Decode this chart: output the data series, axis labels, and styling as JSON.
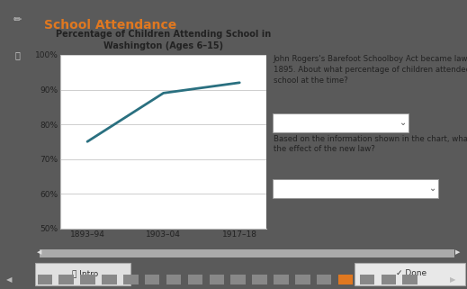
{
  "title": "School Attendance",
  "title_color": "#e07820",
  "chart_title": "Percentage of Children Attending School in\nWashington (Ages 6–15)",
  "x_labels": [
    "1893–94",
    "1903–04",
    "1917–18"
  ],
  "x_values": [
    0,
    1,
    2
  ],
  "y_values": [
    75,
    89,
    92
  ],
  "y_min": 50,
  "y_max": 100,
  "y_ticks": [
    50,
    60,
    70,
    80,
    90,
    100
  ],
  "y_tick_labels": [
    "50%",
    "60%",
    "70%",
    "80%",
    "90%",
    "100%"
  ],
  "line_color": "#2a7080",
  "line_width": 2.0,
  "outer_bg": "#5a5a5a",
  "title_bg": "#e8e8e8",
  "main_bg": "#e0e0e0",
  "chart_bg": "#ffffff",
  "left_sidebar_bg": "#3a3a3a",
  "right_text_q1": "John Rogers's Barefoot Schoolboy Act became law in\n1895. About what percentage of children attended\nschool at the time?",
  "right_text_q2": "Based on the information shown in the chart, what was\nthe effect of the new law?",
  "text_color": "#222222",
  "grid_color": "#bbbbbb",
  "bottom_bar_bg": "#7a7a7a",
  "done_btn_bg": "#e8e8e8",
  "intro_btn_bg": "#e8e8e8",
  "nav_bar_bg": "#333333"
}
